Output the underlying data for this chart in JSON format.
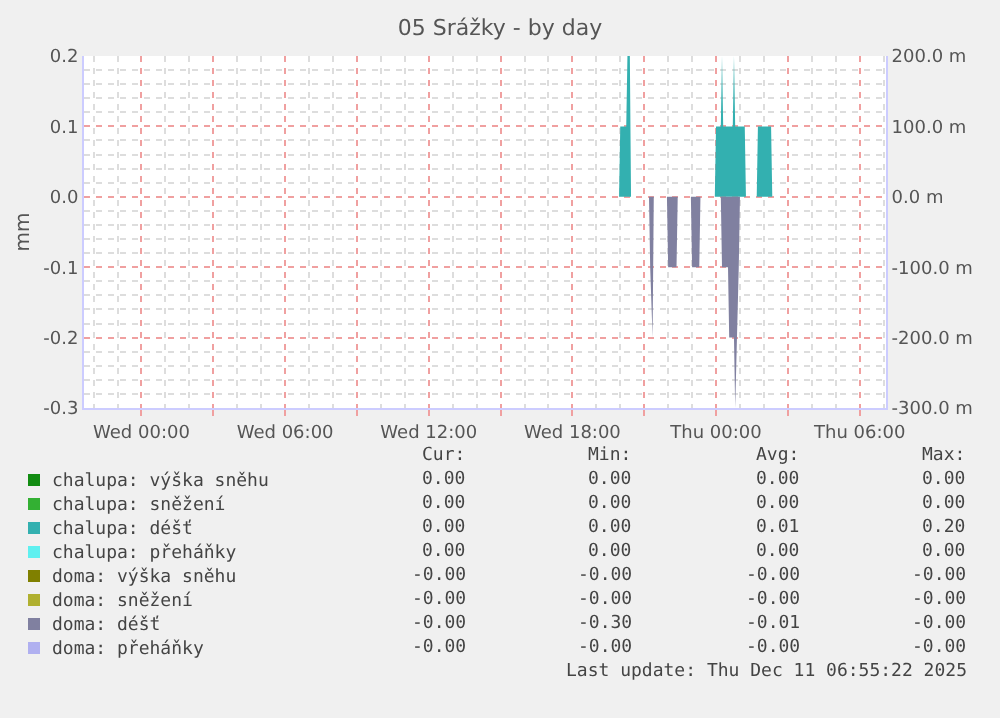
{
  "chart_data": {
    "type": "area",
    "title": "05 Srážky - by day",
    "ylabel": "mm",
    "xlim": [
      "2025-12-09T21:36",
      "2025-12-11T07:06"
    ],
    "xticks": [
      {
        "value": "2025-12-10T00:00",
        "label": "Wed 00:00"
      },
      {
        "value": "2025-12-10T03:00",
        "label": null
      },
      {
        "value": "2025-12-10T06:00",
        "label": "Wed 06:00"
      },
      {
        "value": "2025-12-10T09:00",
        "label": null
      },
      {
        "value": "2025-12-10T12:00",
        "label": "Wed 12:00"
      },
      {
        "value": "2025-12-10T15:00",
        "label": null
      },
      {
        "value": "2025-12-10T18:00",
        "label": "Wed 18:00"
      },
      {
        "value": "2025-12-10T21:00",
        "label": null
      },
      {
        "value": "2025-12-11T00:00",
        "label": "Thu 00:00"
      },
      {
        "value": "2025-12-11T03:00",
        "label": null
      },
      {
        "value": "2025-12-11T06:00",
        "label": "Thu 06:00"
      }
    ],
    "ylim": [
      -0.3,
      0.2
    ],
    "yticks": [
      {
        "value": -0.3,
        "label": "-0.3"
      },
      {
        "value": -0.2,
        "label": "-0.2"
      },
      {
        "value": -0.1,
        "label": "-0.1"
      },
      {
        "value": 0,
        "label": "0.0"
      },
      {
        "value": 0.1,
        "label": "0.1"
      },
      {
        "value": 0.2,
        "label": "0.2"
      }
    ],
    "y2lim": [
      -300,
      200
    ],
    "y2ticks": [
      {
        "value": -300,
        "label": "-300.0 m"
      },
      {
        "value": -200,
        "label": "-200.0 m"
      },
      {
        "value": -100,
        "label": "-100.0 m"
      },
      {
        "value": 0,
        "label": "0.0 m"
      },
      {
        "value": 100,
        "label": "100.0 m"
      },
      {
        "value": 200,
        "label": "200.0 m"
      }
    ],
    "grid": true,
    "legend": "bottom left",
    "series": [
      {
        "name": "chalupa: výška sněhu",
        "color": "#128c12"
      },
      {
        "name": "chalupa: sněžení",
        "color": "#33b033"
      },
      {
        "name": "chalupa: déšť",
        "color": "#33b0b0",
        "x": [
          "2025-12-09T22:00",
          "2025-12-10T19:57",
          "2025-12-10T20:00",
          "2025-12-10T20:15",
          "2025-12-10T20:18",
          "2025-12-10T20:24",
          "2025-12-10T20:27",
          "2025-12-10T23:57",
          "2025-12-11T00:00",
          "2025-12-11T00:12",
          "2025-12-11T00:15",
          "2025-12-11T00:18",
          "2025-12-11T00:42",
          "2025-12-11T00:45",
          "2025-12-11T00:48",
          "2025-12-11T01:12",
          "2025-12-11T01:15",
          "2025-12-11T01:42",
          "2025-12-11T01:45",
          "2025-12-11T02:18",
          "2025-12-11T02:21",
          "2025-12-11T06:54"
        ],
        "values": [
          0,
          0,
          0.1,
          0.1,
          0.2,
          0.2,
          0,
          0,
          0.1,
          0.1,
          0.2,
          0.1,
          0.1,
          0.2,
          0.1,
          0.1,
          0,
          0,
          0.1,
          0.1,
          0,
          0
        ]
      },
      {
        "name": "chalupa: přeháňky",
        "color": "#5ff0f0"
      },
      {
        "name": "doma: výška sněhu",
        "color": "#808000"
      },
      {
        "name": "doma: sněžení",
        "color": "#b0b030"
      },
      {
        "name": "doma: déšť",
        "color": "#8080a0",
        "x": [
          "2025-12-09T22:00",
          "2025-12-10T21:12",
          "2025-12-10T21:15",
          "2025-12-10T21:21",
          "2025-12-10T21:24",
          "2025-12-10T21:57",
          "2025-12-10T22:00",
          "2025-12-10T22:21",
          "2025-12-10T22:24",
          "2025-12-10T22:57",
          "2025-12-10T23:00",
          "2025-12-10T23:18",
          "2025-12-10T23:21",
          "2025-12-11T00:12",
          "2025-12-11T00:15",
          "2025-12-11T00:30",
          "2025-12-11T00:33",
          "2025-12-11T00:45",
          "2025-12-11T00:48",
          "2025-12-11T00:57",
          "2025-12-11T01:00",
          "2025-12-11T06:54"
        ],
        "values": [
          0,
          0,
          -0.1,
          -0.2,
          0,
          0,
          -0.1,
          -0.1,
          0,
          0,
          -0.1,
          -0.1,
          0,
          0,
          -0.1,
          -0.1,
          -0.2,
          -0.2,
          -0.3,
          -0.1,
          0,
          0
        ]
      },
      {
        "name": "doma: přeháňky",
        "color": "#b0b0f0"
      }
    ],
    "annotations": [
      "Cur:",
      "Min:",
      "Avg:",
      "Max:",
      "0.00",
      "0.00",
      "0.00",
      "0.00",
      "0.00",
      "0.00",
      "0.00",
      "0.00",
      "0.00",
      "0.00",
      "0.01",
      "0.20",
      "0.00",
      "0.00",
      "0.00",
      "0.00",
      "-0.00",
      "-0.00",
      "-0.00",
      "-0.00",
      "-0.00",
      "-0.00",
      "-0.00",
      "-0.00",
      "-0.00",
      "-0.30",
      "-0.01",
      "-0.00",
      "-0.00",
      "-0.00",
      "-0.00",
      "-0.00",
      "Last update: Thu Dec 11 06:55:22 2025"
    ]
  }
}
